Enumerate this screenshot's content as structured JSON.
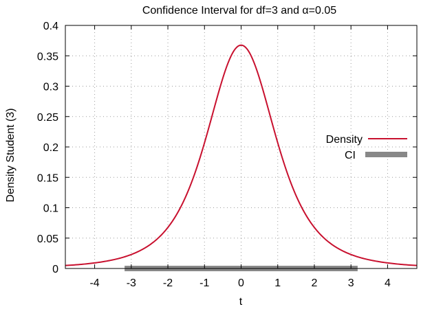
{
  "chart_data": {
    "type": "line",
    "title": "Confidence Interval for df=3 and α=0.05",
    "xlabel": "t",
    "ylabel": "Density Student (3)",
    "xlim": [
      -4.8,
      4.8
    ],
    "ylim": [
      0,
      0.4
    ],
    "grid": true,
    "legend_position": "right",
    "x_ticks": [
      -4,
      -3,
      -2,
      -1,
      0,
      1,
      2,
      3,
      4
    ],
    "x_tick_labels": [
      "-4",
      "-3",
      "-2",
      "-1",
      "0",
      "1",
      "2",
      "3",
      "4"
    ],
    "y_ticks": [
      0,
      0.05,
      0.1,
      0.15,
      0.2,
      0.25,
      0.3,
      0.35,
      0.4
    ],
    "y_tick_labels": [
      "0",
      "0.05",
      "0.1",
      "0.15",
      "0.2",
      "0.25",
      "0.3",
      "0.35",
      "0.4"
    ],
    "series": [
      {
        "name": "Density",
        "color": "#c8102e",
        "x": [
          -4.8,
          -4.5,
          -4.0,
          -3.5,
          -3.0,
          -2.5,
          -2.0,
          -1.75,
          -1.5,
          -1.25,
          -1.0,
          -0.75,
          -0.5,
          -0.25,
          0,
          0.25,
          0.5,
          0.75,
          1.0,
          1.25,
          1.5,
          1.75,
          2.0,
          2.5,
          3.0,
          3.5,
          4.0,
          4.5,
          4.8
        ],
        "y": [
          0.0054,
          0.0065,
          0.0092,
          0.0137,
          0.0229,
          0.0354,
          0.0675,
          0.0886,
          0.1164,
          0.1519,
          0.2067,
          0.2539,
          0.3125,
          0.3509,
          0.3676,
          0.3509,
          0.3125,
          0.2539,
          0.2067,
          0.1519,
          0.1164,
          0.0886,
          0.0675,
          0.0354,
          0.0229,
          0.0137,
          0.0092,
          0.0065,
          0.0054
        ]
      },
      {
        "name": "CI",
        "color": "#888888",
        "x": [
          -3.182,
          3.182
        ],
        "y": [
          0,
          0
        ]
      }
    ]
  }
}
